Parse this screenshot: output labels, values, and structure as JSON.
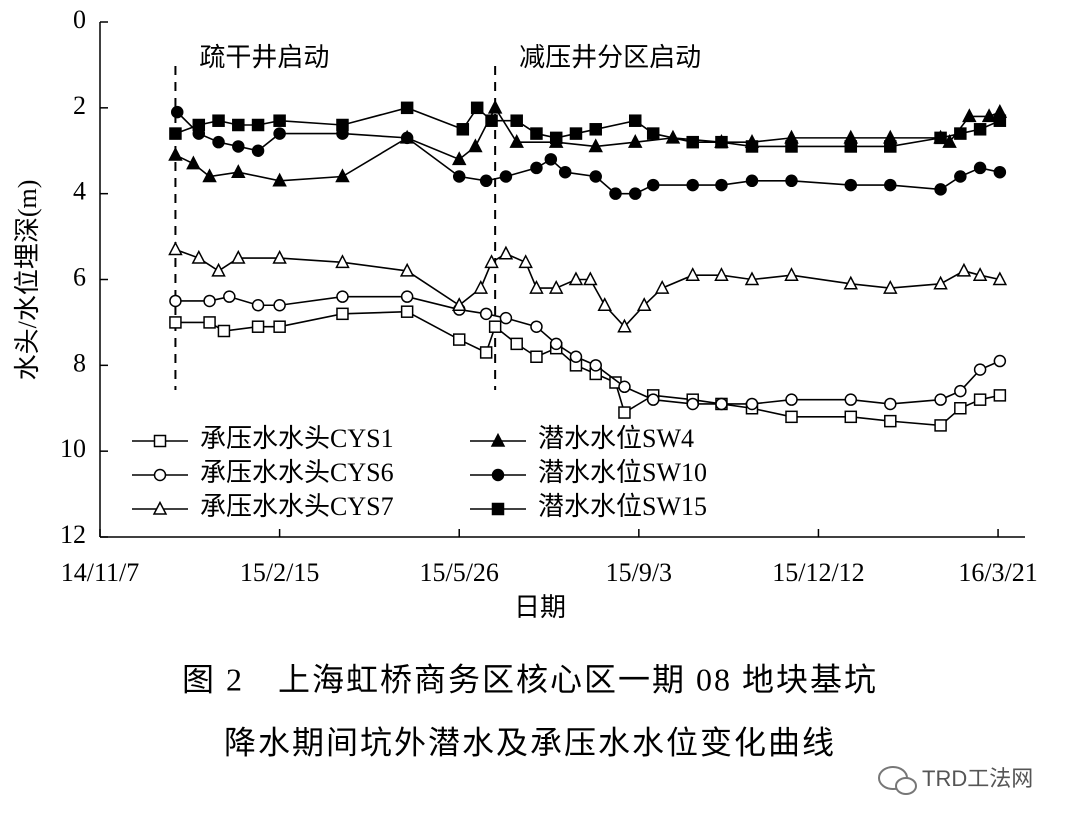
{
  "chart_data": {
    "type": "line",
    "y_label": "水头/水位埋深(m)",
    "x_label": "日期",
    "y_inverted": true,
    "ylim": [
      0,
      12
    ],
    "yticks": [
      0,
      2,
      4,
      6,
      8,
      10,
      12
    ],
    "xlim": [
      "2014-11-07",
      "2016-04-05"
    ],
    "xticks": [
      {
        "value": "2014-11-07",
        "label": "14/11/7"
      },
      {
        "value": "2015-02-15",
        "label": "15/2/15"
      },
      {
        "value": "2015-05-26",
        "label": "15/5/26"
      },
      {
        "value": "2015-09-03",
        "label": "15/9/3"
      },
      {
        "value": "2015-12-12",
        "label": "15/12/12"
      },
      {
        "value": "2016-03-21",
        "label": "16/3/21"
      }
    ],
    "annotations": [
      {
        "text": "疏干井启动",
        "x": "2014-12-19"
      },
      {
        "text": "减压井分区启动",
        "x": "2015-06-15"
      }
    ],
    "series": [
      {
        "name": "承压水水头CYS1",
        "color": "#000000",
        "marker": "square",
        "filled": false,
        "x": [
          "2014-12-19",
          "2015-01-07",
          "2015-01-15",
          "2015-02-03",
          "2015-02-15",
          "2015-03-22",
          "2015-04-27",
          "2015-05-26",
          "2015-06-10",
          "2015-06-15",
          "2015-06-27",
          "2015-07-08",
          "2015-07-19",
          "2015-07-30",
          "2015-08-10",
          "2015-08-21",
          "2015-08-26",
          "2015-09-11",
          "2015-10-03",
          "2015-10-19",
          "2015-11-05",
          "2015-11-27",
          "2015-12-30",
          "2016-01-21",
          "2016-02-18",
          "2016-02-29",
          "2016-03-11",
          "2016-03-22"
        ],
        "values": [
          7.0,
          7.0,
          7.2,
          7.1,
          7.1,
          6.8,
          6.75,
          7.4,
          7.7,
          7.1,
          7.5,
          7.8,
          7.6,
          8.0,
          8.2,
          8.4,
          9.1,
          8.7,
          8.8,
          8.9,
          9.0,
          9.2,
          9.2,
          9.3,
          9.4,
          9.0,
          8.8,
          8.7
        ]
      },
      {
        "name": "承压水水头CYS6",
        "color": "#000000",
        "marker": "circle",
        "filled": false,
        "x": [
          "2014-12-19",
          "2015-01-07",
          "2015-01-18",
          "2015-02-03",
          "2015-02-15",
          "2015-03-22",
          "2015-04-27",
          "2015-05-26",
          "2015-06-10",
          "2015-06-21",
          "2015-07-08",
          "2015-07-19",
          "2015-07-30",
          "2015-08-10",
          "2015-08-26",
          "2015-09-11",
          "2015-10-03",
          "2015-10-19",
          "2015-11-05",
          "2015-11-27",
          "2015-12-30",
          "2016-01-21",
          "2016-02-18",
          "2016-02-29",
          "2016-03-11",
          "2016-03-22"
        ],
        "values": [
          6.5,
          6.5,
          6.4,
          6.6,
          6.6,
          6.4,
          6.4,
          6.7,
          6.8,
          6.9,
          7.1,
          7.5,
          7.8,
          8.0,
          8.5,
          8.8,
          8.9,
          8.9,
          8.9,
          8.8,
          8.8,
          8.9,
          8.8,
          8.6,
          8.1,
          7.9
        ]
      },
      {
        "name": "承压水水头CYS7",
        "color": "#000000",
        "marker": "triangle",
        "filled": false,
        "x": [
          "2014-12-19",
          "2015-01-01",
          "2015-01-12",
          "2015-01-23",
          "2015-02-15",
          "2015-03-22",
          "2015-04-27",
          "2015-05-26",
          "2015-06-07",
          "2015-06-13",
          "2015-06-21",
          "2015-07-02",
          "2015-07-08",
          "2015-07-19",
          "2015-07-30",
          "2015-08-07",
          "2015-08-15",
          "2015-08-26",
          "2015-09-06",
          "2015-09-16",
          "2015-10-03",
          "2015-10-19",
          "2015-11-05",
          "2015-11-27",
          "2015-12-30",
          "2016-01-21",
          "2016-02-18",
          "2016-03-02",
          "2016-03-11",
          "2016-03-22"
        ],
        "values": [
          5.3,
          5.5,
          5.8,
          5.5,
          5.5,
          5.6,
          5.8,
          6.6,
          6.2,
          5.6,
          5.4,
          5.6,
          6.2,
          6.2,
          6.0,
          6.0,
          6.6,
          7.1,
          6.6,
          6.2,
          5.9,
          5.9,
          6.0,
          5.9,
          6.1,
          6.2,
          6.1,
          5.8,
          5.9,
          6.0
        ]
      },
      {
        "name": "潜水水位SW4",
        "color": "#000000",
        "marker": "triangle",
        "filled": true,
        "x": [
          "2014-12-19",
          "2014-12-29",
          "2015-01-07",
          "2015-01-23",
          "2015-02-15",
          "2015-03-22",
          "2015-04-27",
          "2015-05-26",
          "2015-06-04",
          "2015-06-15",
          "2015-06-27",
          "2015-07-19",
          "2015-08-10",
          "2015-09-01",
          "2015-09-22",
          "2015-10-19",
          "2015-11-05",
          "2015-11-27",
          "2015-12-30",
          "2016-01-21",
          "2016-02-18",
          "2016-02-23",
          "2016-03-05",
          "2016-03-16",
          "2016-03-22"
        ],
        "values": [
          3.1,
          3.3,
          3.6,
          3.5,
          3.7,
          3.6,
          2.7,
          3.2,
          2.9,
          2.0,
          2.8,
          2.8,
          2.9,
          2.8,
          2.7,
          2.8,
          2.8,
          2.7,
          2.7,
          2.7,
          2.7,
          2.8,
          2.2,
          2.2,
          2.1
        ]
      },
      {
        "name": "潜水水位SW10",
        "color": "#000000",
        "marker": "circle",
        "filled": true,
        "x": [
          "2014-12-20",
          "2015-01-01",
          "2015-01-12",
          "2015-01-23",
          "2015-02-03",
          "2015-02-15",
          "2015-03-22",
          "2015-04-27",
          "2015-05-26",
          "2015-06-10",
          "2015-06-21",
          "2015-07-08",
          "2015-07-16",
          "2015-07-24",
          "2015-08-10",
          "2015-08-21",
          "2015-09-01",
          "2015-09-11",
          "2015-10-03",
          "2015-10-19",
          "2015-11-05",
          "2015-11-27",
          "2015-12-30",
          "2016-01-21",
          "2016-02-18",
          "2016-02-29",
          "2016-03-11",
          "2016-03-22"
        ],
        "values": [
          2.1,
          2.6,
          2.8,
          2.9,
          3.0,
          2.6,
          2.6,
          2.7,
          3.6,
          3.7,
          3.6,
          3.4,
          3.2,
          3.5,
          3.6,
          4.0,
          4.0,
          3.8,
          3.8,
          3.8,
          3.7,
          3.7,
          3.8,
          3.8,
          3.9,
          3.6,
          3.4,
          3.5
        ]
      },
      {
        "name": "潜水水位SW15",
        "color": "#000000",
        "marker": "square",
        "filled": true,
        "x": [
          "2014-12-19",
          "2015-01-01",
          "2015-01-12",
          "2015-01-23",
          "2015-02-03",
          "2015-02-15",
          "2015-03-22",
          "2015-04-27",
          "2015-05-28",
          "2015-06-05",
          "2015-06-13",
          "2015-06-27",
          "2015-07-08",
          "2015-07-19",
          "2015-07-30",
          "2015-08-10",
          "2015-09-01",
          "2015-09-11",
          "2015-10-03",
          "2015-10-19",
          "2015-11-05",
          "2015-11-27",
          "2015-12-30",
          "2016-01-21",
          "2016-02-18",
          "2016-02-29",
          "2016-03-11",
          "2016-03-22"
        ],
        "values": [
          2.6,
          2.4,
          2.3,
          2.4,
          2.4,
          2.3,
          2.4,
          2.0,
          2.5,
          2.0,
          2.3,
          2.3,
          2.6,
          2.7,
          2.6,
          2.5,
          2.3,
          2.6,
          2.8,
          2.8,
          2.9,
          2.9,
          2.9,
          2.9,
          2.7,
          2.6,
          2.5,
          2.3
        ]
      }
    ]
  },
  "caption": [
    "图 2　上海虹桥商务区核心区一期 08 地块基坑",
    "降水期间坑外潜水及承压水水位变化曲线"
  ],
  "watermark": "TRD工法网"
}
